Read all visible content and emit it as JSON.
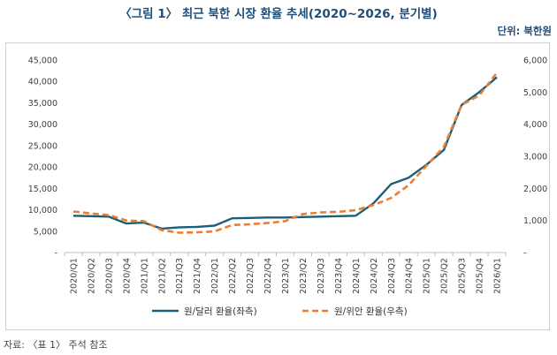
{
  "title": "〈그림 1〉 최근 북한 시장 환율 추세(2020~2026, 분기별)",
  "unit_label": "단위: 북한원",
  "source": "자료: 〈표 1〉 주석 참조",
  "chart_data": {
    "type": "line",
    "categories": [
      "2020/Q1",
      "2020/Q2",
      "2020/Q3",
      "2020/Q4",
      "2021/Q1",
      "2021/Q2",
      "2021/Q3",
      "2021/Q4",
      "2022/Q1",
      "2022/Q2",
      "2022/Q3",
      "2022/Q4",
      "2023/Q1",
      "2023/Q2",
      "2023/Q3",
      "2023/Q4",
      "2024/Q1",
      "2024/Q2",
      "2024/Q3",
      "2024/Q4",
      "2025/Q1",
      "2025/Q2",
      "2025/Q3",
      "2025/Q4",
      "2026/Q1"
    ],
    "series": [
      {
        "name": "원/달러 환율(좌측)",
        "axis": "left",
        "color": "#1a5e7a",
        "style": "solid",
        "values": [
          8600,
          8500,
          8400,
          6800,
          7000,
          5600,
          5900,
          6000,
          6300,
          8000,
          8100,
          8200,
          8200,
          8300,
          8400,
          8500,
          8600,
          11500,
          16000,
          17500,
          20500,
          24000,
          34500,
          37500,
          41000
        ]
      },
      {
        "name": "원/위안 환율(우측)",
        "axis": "right",
        "color": "#ed7d31",
        "style": "dashed",
        "values": [
          1280,
          1220,
          1170,
          1000,
          980,
          700,
          620,
          630,
          660,
          860,
          880,
          920,
          980,
          1200,
          1250,
          1270,
          1320,
          1480,
          1700,
          2100,
          2700,
          3300,
          4600,
          4900,
          5600
        ]
      }
    ],
    "left_axis": {
      "min": 0,
      "max": 45000,
      "step": 5000,
      "ticks": [
        "-",
        "5,000",
        "10,000",
        "15,000",
        "20,000",
        "25,000",
        "30,000",
        "35,000",
        "40,000",
        "45,000"
      ]
    },
    "right_axis": {
      "min": 0,
      "max": 6000,
      "step": 1000,
      "ticks": [
        "-",
        "1,000",
        "2,000",
        "3,000",
        "4,000",
        "5,000",
        "6,000"
      ]
    },
    "grid": false,
    "legend_position": "bottom"
  }
}
